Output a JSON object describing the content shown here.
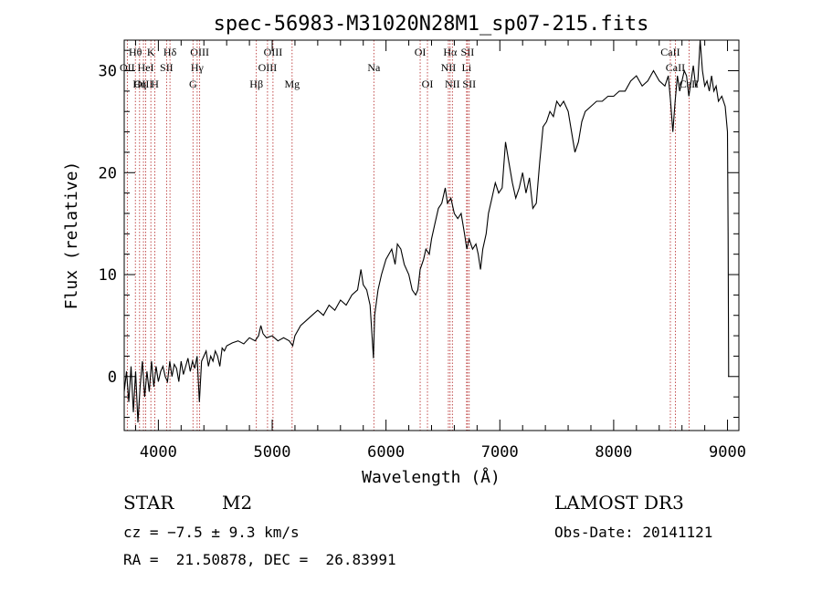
{
  "chart_data": {
    "type": "line",
    "title": "spec-56983-M31020N28M1_sp07-215.fits",
    "xlabel": "Wavelength (Å)",
    "ylabel": "Flux (relative)",
    "xlim": [
      3700,
      9100
    ],
    "ylim": [
      -5.3,
      33
    ],
    "xticks": [
      4000,
      5000,
      6000,
      7000,
      8000,
      9000
    ],
    "yticks": [
      0,
      10,
      20,
      30
    ],
    "series": [
      {
        "name": "flux",
        "points": [
          [
            3700,
            -1.5
          ],
          [
            3720,
            0.5
          ],
          [
            3740,
            -2.5
          ],
          [
            3760,
            1.0
          ],
          [
            3780,
            -3.5
          ],
          [
            3800,
            0.5
          ],
          [
            3820,
            -4.5
          ],
          [
            3840,
            -1.0
          ],
          [
            3860,
            1.5
          ],
          [
            3880,
            -2.0
          ],
          [
            3900,
            0.5
          ],
          [
            3920,
            -1.5
          ],
          [
            3940,
            1.5
          ],
          [
            3960,
            -1.0
          ],
          [
            3980,
            1.0
          ],
          [
            4000,
            -0.5
          ],
          [
            4020,
            0.5
          ],
          [
            4040,
            1.0
          ],
          [
            4060,
            0.0
          ],
          [
            4080,
            -0.5
          ],
          [
            4100,
            1.5
          ],
          [
            4120,
            0.0
          ],
          [
            4140,
            1.2
          ],
          [
            4160,
            0.8
          ],
          [
            4180,
            -0.5
          ],
          [
            4200,
            1.5
          ],
          [
            4220,
            0.2
          ],
          [
            4240,
            1.0
          ],
          [
            4260,
            1.8
          ],
          [
            4280,
            0.5
          ],
          [
            4300,
            1.5
          ],
          [
            4320,
            0.8
          ],
          [
            4340,
            2.0
          ],
          [
            4360,
            -2.5
          ],
          [
            4380,
            1.5
          ],
          [
            4400,
            2.0
          ],
          [
            4420,
            2.5
          ],
          [
            4440,
            1.0
          ],
          [
            4460,
            2.0
          ],
          [
            4480,
            1.5
          ],
          [
            4500,
            2.5
          ],
          [
            4520,
            2.0
          ],
          [
            4540,
            1.0
          ],
          [
            4560,
            2.8
          ],
          [
            4580,
            2.5
          ],
          [
            4600,
            3.0
          ],
          [
            4650,
            3.3
          ],
          [
            4700,
            3.5
          ],
          [
            4750,
            3.2
          ],
          [
            4800,
            3.8
          ],
          [
            4850,
            3.5
          ],
          [
            4880,
            4.0
          ],
          [
            4900,
            5.0
          ],
          [
            4920,
            4.2
          ],
          [
            4950,
            3.8
          ],
          [
            5000,
            4.0
          ],
          [
            5050,
            3.5
          ],
          [
            5100,
            3.8
          ],
          [
            5150,
            3.5
          ],
          [
            5180,
            3.0
          ],
          [
            5200,
            4.0
          ],
          [
            5250,
            5.0
          ],
          [
            5300,
            5.5
          ],
          [
            5350,
            6.0
          ],
          [
            5400,
            6.5
          ],
          [
            5450,
            6.0
          ],
          [
            5500,
            7.0
          ],
          [
            5550,
            6.5
          ],
          [
            5600,
            7.5
          ],
          [
            5650,
            7.0
          ],
          [
            5700,
            8.0
          ],
          [
            5750,
            8.5
          ],
          [
            5780,
            10.5
          ],
          [
            5800,
            9.0
          ],
          [
            5830,
            8.5
          ],
          [
            5860,
            7.0
          ],
          [
            5890,
            1.8
          ],
          [
            5900,
            6.0
          ],
          [
            5930,
            8.5
          ],
          [
            5960,
            10.0
          ],
          [
            6000,
            11.5
          ],
          [
            6050,
            12.5
          ],
          [
            6080,
            11.0
          ],
          [
            6100,
            13.0
          ],
          [
            6130,
            12.5
          ],
          [
            6160,
            11.0
          ],
          [
            6200,
            10.0
          ],
          [
            6230,
            8.5
          ],
          [
            6260,
            8.0
          ],
          [
            6280,
            8.5
          ],
          [
            6300,
            10.5
          ],
          [
            6330,
            11.5
          ],
          [
            6350,
            12.5
          ],
          [
            6380,
            12.0
          ],
          [
            6400,
            13.5
          ],
          [
            6430,
            15.0
          ],
          [
            6460,
            16.5
          ],
          [
            6490,
            17.0
          ],
          [
            6520,
            18.5
          ],
          [
            6540,
            17.0
          ],
          [
            6570,
            17.5
          ],
          [
            6600,
            16.0
          ],
          [
            6630,
            15.5
          ],
          [
            6660,
            16.0
          ],
          [
            6690,
            14.0
          ],
          [
            6710,
            12.5
          ],
          [
            6730,
            13.5
          ],
          [
            6760,
            12.5
          ],
          [
            6790,
            13.0
          ],
          [
            6810,
            12.0
          ],
          [
            6830,
            10.5
          ],
          [
            6850,
            12.5
          ],
          [
            6880,
            14.0
          ],
          [
            6900,
            16.0
          ],
          [
            6930,
            17.5
          ],
          [
            6960,
            19.0
          ],
          [
            6990,
            18.0
          ],
          [
            7020,
            18.5
          ],
          [
            7050,
            23.0
          ],
          [
            7080,
            21.0
          ],
          [
            7110,
            19.0
          ],
          [
            7140,
            17.5
          ],
          [
            7170,
            18.5
          ],
          [
            7200,
            20.0
          ],
          [
            7230,
            18.0
          ],
          [
            7260,
            19.5
          ],
          [
            7290,
            16.5
          ],
          [
            7320,
            17.0
          ],
          [
            7350,
            21.0
          ],
          [
            7380,
            24.5
          ],
          [
            7410,
            25.0
          ],
          [
            7440,
            26.0
          ],
          [
            7470,
            25.5
          ],
          [
            7500,
            27.0
          ],
          [
            7530,
            26.5
          ],
          [
            7560,
            27.0
          ],
          [
            7600,
            26.0
          ],
          [
            7630,
            24.0
          ],
          [
            7660,
            22.0
          ],
          [
            7690,
            23.0
          ],
          [
            7720,
            25.0
          ],
          [
            7750,
            26.0
          ],
          [
            7800,
            26.5
          ],
          [
            7850,
            27.0
          ],
          [
            7900,
            27.0
          ],
          [
            7950,
            27.5
          ],
          [
            8000,
            27.5
          ],
          [
            8050,
            28.0
          ],
          [
            8100,
            28.0
          ],
          [
            8150,
            29.0
          ],
          [
            8200,
            29.5
          ],
          [
            8250,
            28.5
          ],
          [
            8300,
            29.0
          ],
          [
            8350,
            30.0
          ],
          [
            8400,
            29.0
          ],
          [
            8450,
            28.5
          ],
          [
            8480,
            29.5
          ],
          [
            8500,
            27.0
          ],
          [
            8520,
            24.0
          ],
          [
            8540,
            27.0
          ],
          [
            8560,
            29.5
          ],
          [
            8580,
            28.0
          ],
          [
            8600,
            29.0
          ],
          [
            8620,
            30.0
          ],
          [
            8640,
            29.5
          ],
          [
            8660,
            27.5
          ],
          [
            8680,
            29.0
          ],
          [
            8700,
            30.5
          ],
          [
            8720,
            28.5
          ],
          [
            8740,
            29.0
          ],
          [
            8760,
            33.0
          ],
          [
            8780,
            30.0
          ],
          [
            8800,
            28.5
          ],
          [
            8820,
            29.0
          ],
          [
            8840,
            28.0
          ],
          [
            8860,
            29.5
          ],
          [
            8880,
            28.0
          ],
          [
            8900,
            28.5
          ],
          [
            8920,
            27.0
          ],
          [
            8950,
            27.5
          ],
          [
            8980,
            26.5
          ],
          [
            9000,
            24.0
          ],
          [
            9005,
            14.0
          ],
          [
            9010,
            0.0
          ]
        ]
      }
    ],
    "lines": [
      {
        "label": "Hθ",
        "wave": 3798,
        "row": 0
      },
      {
        "label": "OII",
        "wave": 3727,
        "row": 1
      },
      {
        "label": "OIII",
        "wave": 3869,
        "row": 2
      },
      {
        "label": "HeI",
        "wave": 3889,
        "row": 1
      },
      {
        "label": "Hη",
        "wave": 3835,
        "row": 2
      },
      {
        "label": "K",
        "wave": 3934,
        "row": 0
      },
      {
        "label": "H",
        "wave": 3969,
        "row": 2
      },
      {
        "label": "SII",
        "wave": 4072,
        "row": 1
      },
      {
        "label": "Hδ",
        "wave": 4102,
        "row": 0
      },
      {
        "label": "OIII",
        "wave": 4363,
        "row": 0
      },
      {
        "label": "Hγ",
        "wave": 4341,
        "row": 1
      },
      {
        "label": "G",
        "wave": 4304,
        "row": 2
      },
      {
        "label": "Hβ",
        "wave": 4861,
        "row": 2
      },
      {
        "label": "OIII",
        "wave": 4959,
        "row": 1
      },
      {
        "label": "OIII",
        "wave": 5007,
        "row": 0
      },
      {
        "label": "Mg",
        "wave": 5175,
        "row": 2
      },
      {
        "label": "Na",
        "wave": 5893,
        "row": 1
      },
      {
        "label": "OI",
        "wave": 6300,
        "row": 0
      },
      {
        "label": "OI",
        "wave": 6364,
        "row": 2
      },
      {
        "label": "Hα",
        "wave": 6563,
        "row": 0
      },
      {
        "label": "NII",
        "wave": 6548,
        "row": 1
      },
      {
        "label": "NII",
        "wave": 6583,
        "row": 2
      },
      {
        "label": "SII",
        "wave": 6716,
        "row": 0
      },
      {
        "label": "Li",
        "wave": 6708,
        "row": 1
      },
      {
        "label": "SII",
        "wave": 6731,
        "row": 2
      },
      {
        "label": "CaII",
        "wave": 8498,
        "row": 0
      },
      {
        "label": "CaII",
        "wave": 8542,
        "row": 1
      },
      {
        "label": "CaII",
        "wave": 8662,
        "row": 2
      }
    ]
  },
  "info": {
    "class": "STAR",
    "subclass": "M2",
    "survey": "LAMOST DR3",
    "cz": "cz = −7.5 ± 9.3 km/s",
    "obsdate": "Obs-Date: 20141121",
    "radec": "RA =  21.50878, DEC =  26.83991"
  }
}
